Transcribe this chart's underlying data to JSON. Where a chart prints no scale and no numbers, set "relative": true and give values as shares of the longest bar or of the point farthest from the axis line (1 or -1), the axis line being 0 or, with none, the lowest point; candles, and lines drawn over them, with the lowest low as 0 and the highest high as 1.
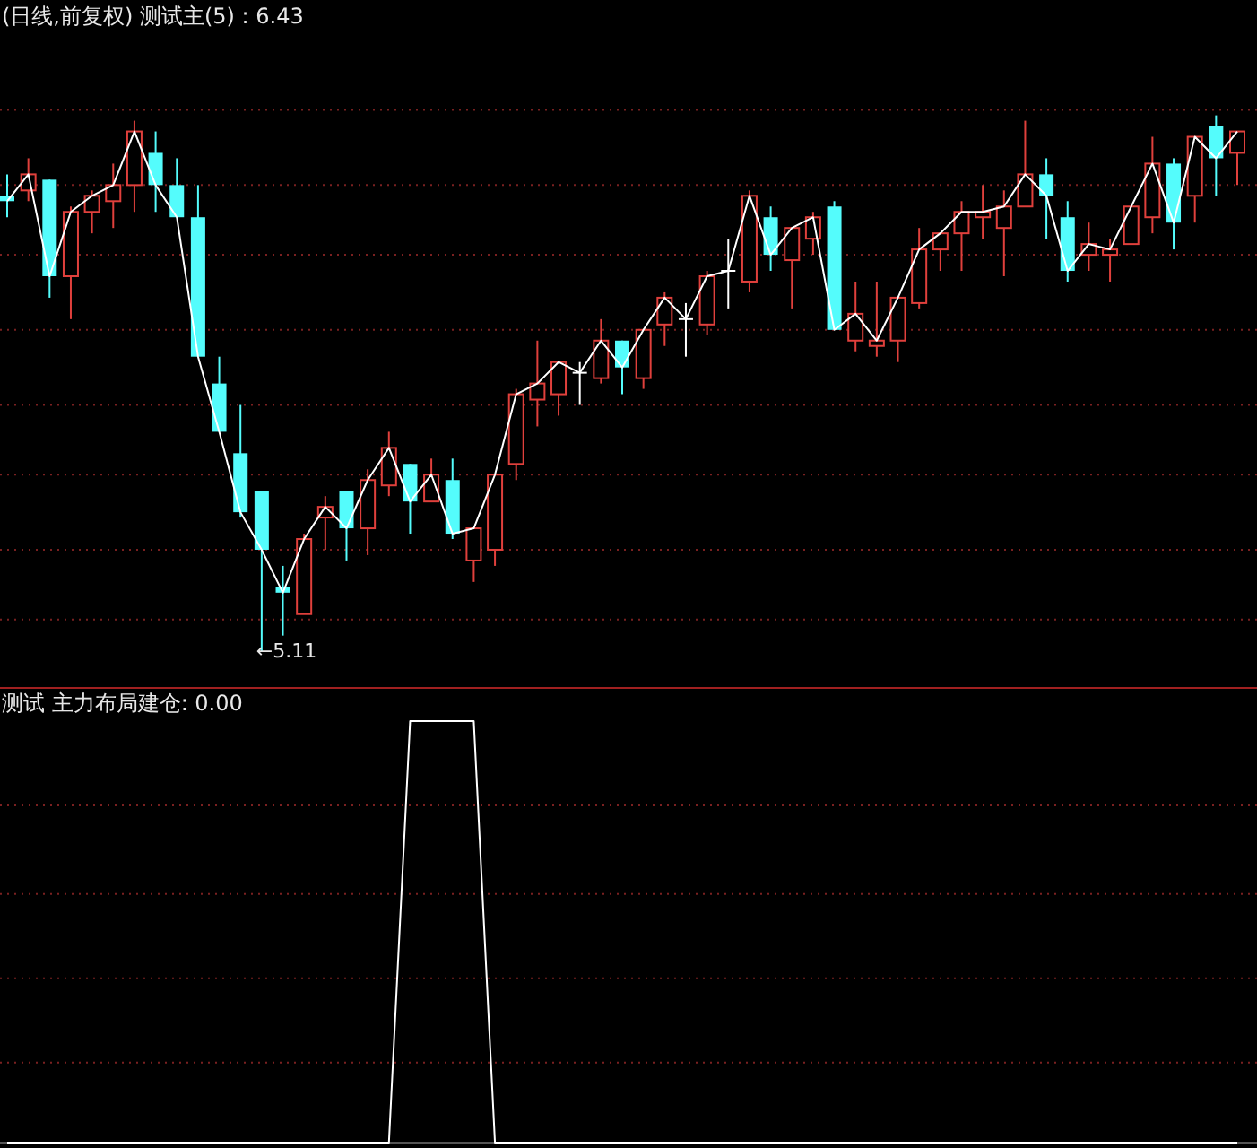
{
  "chart_data": [
    {
      "type": "candlestick",
      "relative": true,
      "title": "(日线,前复权) 测试主(5) : 6.43",
      "annotations": [
        "←5.11"
      ],
      "ref_lines": [
        {
          "axis": "y",
          "value": 1.01,
          "color": "#7a2020",
          "line_style": "dotted"
        },
        {
          "axis": "y",
          "value": 0.87,
          "color": "#7a2020",
          "line_style": "dotted"
        },
        {
          "axis": "y",
          "value": 0.74,
          "color": "#7a2020",
          "line_style": "dotted"
        },
        {
          "axis": "y",
          "value": 0.6,
          "color": "#7a2020",
          "line_style": "dotted"
        },
        {
          "axis": "y",
          "value": 0.46,
          "color": "#7a2020",
          "line_style": "dotted"
        },
        {
          "axis": "y",
          "value": 0.33,
          "color": "#7a2020",
          "line_style": "dotted"
        },
        {
          "axis": "y",
          "value": 0.19,
          "color": "#7a2020",
          "line_style": "dotted"
        },
        {
          "axis": "y",
          "value": 0.06,
          "color": "#7a2020",
          "line_style": "dotted"
        }
      ],
      "categories": [
        null,
        null,
        null,
        null,
        null,
        null,
        null,
        null,
        null,
        null,
        null,
        null,
        null,
        null,
        null,
        null,
        null,
        null,
        null,
        null,
        null,
        null,
        null,
        null,
        null,
        null,
        null,
        null,
        null,
        null,
        null,
        null,
        null,
        null,
        null,
        null,
        null,
        null,
        null,
        null,
        null,
        null,
        null,
        null,
        null,
        null,
        null,
        null,
        null,
        null,
        null,
        null,
        null,
        null,
        null,
        null,
        null,
        null,
        null
      ],
      "ohlc": [
        [
          0.85,
          0.89,
          0.81,
          0.84
        ],
        [
          0.86,
          0.92,
          0.84,
          0.89
        ],
        [
          0.88,
          0.88,
          0.66,
          0.7
        ],
        [
          0.7,
          0.83,
          0.62,
          0.82
        ],
        [
          0.82,
          0.86,
          0.78,
          0.85
        ],
        [
          0.84,
          0.91,
          0.79,
          0.87
        ],
        [
          0.87,
          0.99,
          0.82,
          0.97
        ],
        [
          0.93,
          0.97,
          0.82,
          0.87
        ],
        [
          0.87,
          0.92,
          0.81,
          0.81
        ],
        [
          0.81,
          0.87,
          0.55,
          0.55
        ],
        [
          0.5,
          0.55,
          0.41,
          0.41
        ],
        [
          0.37,
          0.46,
          0.25,
          0.26
        ],
        [
          0.3,
          0.3,
          0,
          0.19
        ],
        [
          0.12,
          0.16,
          0.03,
          0.11
        ],
        [
          0.07,
          0.22,
          0.07,
          0.21
        ],
        [
          0.25,
          0.29,
          0.19,
          0.27
        ],
        [
          0.3,
          0.3,
          0.17,
          0.23
        ],
        [
          0.23,
          0.34,
          0.18,
          0.32
        ],
        [
          0.31,
          0.41,
          0.29,
          0.38
        ],
        [
          0.35,
          0.35,
          0.22,
          0.28
        ],
        [
          0.28,
          0.36,
          0.28,
          0.33
        ],
        [
          0.32,
          0.36,
          0.21,
          0.22
        ],
        [
          0.17,
          0.23,
          0.13,
          0.23
        ],
        [
          0.19,
          0.33,
          0.16,
          0.33
        ],
        [
          0.35,
          0.49,
          0.32,
          0.48
        ],
        [
          0.47,
          0.58,
          0.42,
          0.5
        ],
        [
          0.48,
          0.54,
          0.44,
          0.54
        ],
        [
          0.52,
          0.54,
          0.46,
          0.52
        ],
        [
          0.51,
          0.62,
          0.5,
          0.58
        ],
        [
          0.58,
          0.58,
          0.48,
          0.53
        ],
        [
          0.51,
          0.6,
          0.49,
          0.6
        ],
        [
          0.61,
          0.67,
          0.57,
          0.66
        ],
        [
          0.62,
          0.65,
          0.55,
          0.62
        ],
        [
          0.61,
          0.71,
          0.59,
          0.7
        ],
        [
          0.71,
          0.77,
          0.64,
          0.71
        ],
        [
          0.69,
          0.86,
          0.67,
          0.85
        ],
        [
          0.81,
          0.83,
          0.71,
          0.74
        ],
        [
          0.73,
          0.79,
          0.64,
          0.79
        ],
        [
          0.77,
          0.82,
          0.74,
          0.81
        ],
        [
          0.83,
          0.84,
          0.6,
          0.6
        ],
        [
          0.58,
          0.69,
          0.56,
          0.63
        ],
        [
          0.57,
          0.69,
          0.55,
          0.58
        ],
        [
          0.58,
          0.66,
          0.54,
          0.66
        ],
        [
          0.65,
          0.79,
          0.64,
          0.75
        ],
        [
          0.75,
          0.78,
          0.71,
          0.78
        ],
        [
          0.78,
          0.84,
          0.71,
          0.82
        ],
        [
          0.81,
          0.87,
          0.77,
          0.82
        ],
        [
          0.79,
          0.86,
          0.7,
          0.83
        ],
        [
          0.83,
          0.99,
          0.83,
          0.89
        ],
        [
          0.89,
          0.92,
          0.77,
          0.85
        ],
        [
          0.81,
          0.84,
          0.69,
          0.71
        ],
        [
          0.74,
          0.8,
          0.71,
          0.76
        ],
        [
          0.74,
          0.77,
          0.69,
          0.75
        ],
        [
          0.76,
          0.83,
          0.76,
          0.83
        ],
        [
          0.81,
          0.96,
          0.78,
          0.91
        ],
        [
          0.91,
          0.92,
          0.75,
          0.8
        ],
        [
          0.85,
          0.96,
          0.8,
          0.96
        ],
        [
          0.98,
          1,
          0.85,
          0.92
        ],
        [
          0.93,
          0.97,
          0.87,
          0.97
        ]
      ],
      "colors": [
        "#54fcfc",
        "#e0403c",
        "#54fcfc",
        "#e0403c",
        "#e0403c",
        "#e0403c",
        "#e0403c",
        "#54fcfc",
        "#54fcfc",
        "#54fcfc",
        "#54fcfc",
        "#54fcfc",
        "#54fcfc",
        "#54fcfc",
        "#e0403c",
        "#e0403c",
        "#54fcfc",
        "#e0403c",
        "#e0403c",
        "#54fcfc",
        "#e0403c",
        "#54fcfc",
        "#e0403c",
        "#e0403c",
        "#e0403c",
        "#e0403c",
        "#e0403c",
        "#ffffff",
        "#e0403c",
        "#54fcfc",
        "#e0403c",
        "#e0403c",
        "#ffffff",
        "#e0403c",
        "#ffffff",
        "#e0403c",
        "#54fcfc",
        "#e0403c",
        "#e0403c",
        "#54fcfc",
        "#e0403c",
        "#e0403c",
        "#e0403c",
        "#e0403c",
        "#e0403c",
        "#e0403c",
        "#e0403c",
        "#e0403c",
        "#e0403c",
        "#54fcfc",
        "#54fcfc",
        "#e0403c",
        "#e0403c",
        "#e0403c",
        "#e0403c",
        "#54fcfc",
        "#e0403c",
        "#54fcfc",
        "#e0403c"
      ],
      "series": [
        {
          "type": "line",
          "color": "#ffffff",
          "values": [
            0.84,
            0.89,
            0.7,
            0.82,
            0.85,
            0.87,
            0.97,
            0.87,
            0.81,
            0.55,
            0.41,
            0.26,
            0.19,
            0.11,
            0.21,
            0.27,
            0.23,
            0.32,
            0.38,
            0.28,
            0.33,
            0.22,
            0.23,
            0.33,
            0.48,
            0.5,
            0.54,
            0.52,
            0.58,
            0.53,
            0.6,
            0.66,
            0.62,
            0.7,
            0.71,
            0.85,
            0.74,
            0.79,
            0.81,
            0.6,
            0.63,
            0.58,
            0.66,
            0.75,
            0.78,
            0.82,
            0.82,
            0.83,
            0.89,
            0.85,
            0.71,
            0.76,
            0.75,
            0.83,
            0.91,
            0.8,
            0.96,
            0.92,
            0.97
          ]
        }
      ]
    },
    {
      "type": "line",
      "relative": true,
      "title": "测试  主力布局建仓: 0.00",
      "ref_lines": [
        {
          "axis": "y",
          "value": 0.8,
          "color": "#7a2020",
          "line_style": "dotted"
        },
        {
          "axis": "y",
          "value": 0.59,
          "color": "#7a2020",
          "line_style": "dotted"
        },
        {
          "axis": "y",
          "value": 0.39,
          "color": "#7a2020",
          "line_style": "dotted"
        },
        {
          "axis": "y",
          "value": 0.19,
          "color": "#7a2020",
          "line_style": "dotted"
        }
      ],
      "categories": [
        null,
        null,
        null,
        null,
        null,
        null,
        null,
        null,
        null,
        null,
        null,
        null,
        null,
        null,
        null,
        null,
        null,
        null,
        null,
        null,
        null,
        null,
        null,
        null,
        null,
        null,
        null,
        null,
        null,
        null,
        null,
        null,
        null,
        null,
        null,
        null,
        null,
        null,
        null,
        null,
        null,
        null,
        null,
        null,
        null,
        null,
        null,
        null,
        null,
        null,
        null,
        null,
        null,
        null,
        null,
        null,
        null,
        null,
        null
      ],
      "series": [
        {
          "color": "#ffffff",
          "values": [
            0,
            0,
            0,
            0,
            0,
            0,
            0,
            0,
            0,
            0,
            0,
            0,
            0,
            0,
            0,
            0,
            0,
            0,
            0,
            1,
            1,
            1,
            1,
            0,
            0,
            0,
            0,
            0,
            0,
            0,
            0,
            0,
            0,
            0,
            0,
            0,
            0,
            0,
            0,
            0,
            0,
            0,
            0,
            0,
            0,
            0,
            0,
            0,
            0,
            0,
            0,
            0,
            0,
            0,
            0,
            0,
            0,
            0,
            0
          ]
        }
      ]
    }
  ]
}
